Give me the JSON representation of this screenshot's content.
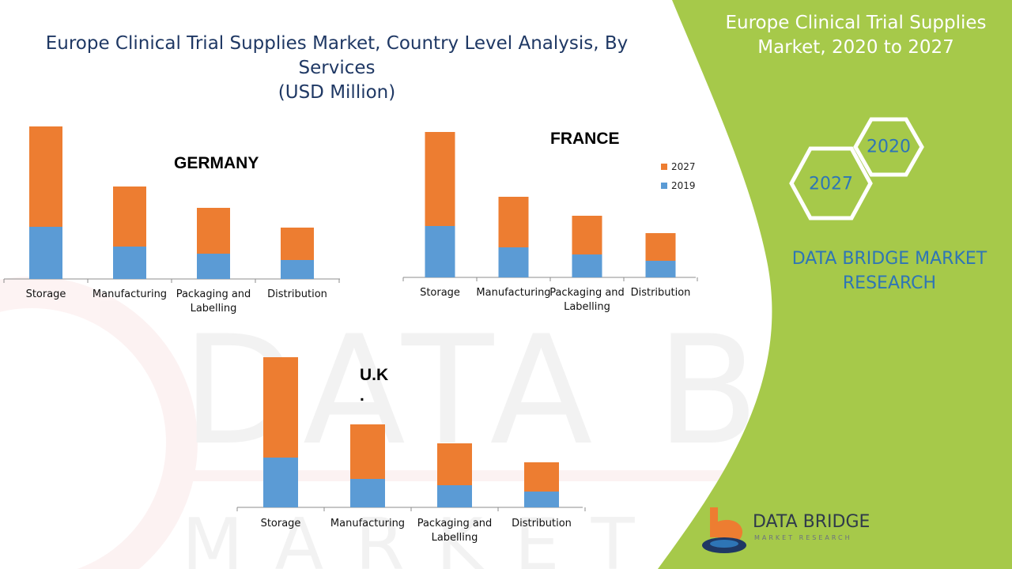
{
  "title_lines": [
    "Europe Clinical Trial Supplies Market, Country Level Analysis, By Services",
    "(USD Million)"
  ],
  "side_title_lines": [
    "Europe Clinical Trial Supplies",
    "Market,  2020 to 2027"
  ],
  "hex_labels": {
    "front": "2027",
    "back": "2020"
  },
  "brand_lines": [
    "DATA BRIDGE MARKET",
    "RESEARCH"
  ],
  "logo": {
    "name": "DATA BRIDGE",
    "sub": "MARKET RESEARCH"
  },
  "colors": {
    "2019": "#5b9bd5",
    "2027": "#ed7d31",
    "green": "#a6c94a",
    "title": "#1f3864",
    "brand": "#2e75b6"
  },
  "chart_data": [
    {
      "type": "bar",
      "stacked": true,
      "title": "GERMANY",
      "categories": [
        "Storage",
        "Manufacturing",
        "Packaging and Labelling",
        "Distribution"
      ],
      "series": [
        {
          "name": "2019",
          "values": [
            66,
            41,
            32,
            24
          ]
        },
        {
          "name": "2027",
          "values": [
            127,
            76,
            58,
            41
          ]
        }
      ],
      "ylim": [
        0,
        200
      ],
      "grid": false
    },
    {
      "type": "bar",
      "stacked": true,
      "title": "FRANCE",
      "categories": [
        "Storage",
        "Manufacturing",
        "Packaging and Labelling",
        "Distribution"
      ],
      "series": [
        {
          "name": "2019",
          "values": [
            65,
            38,
            29,
            21
          ]
        },
        {
          "name": "2027",
          "values": [
            119,
            64,
            49,
            35
          ]
        }
      ],
      "legend": {
        "position": "top-right",
        "entries": [
          "2027",
          "2019"
        ]
      },
      "ylim": [
        0,
        200
      ],
      "grid": false
    },
    {
      "type": "bar",
      "stacked": true,
      "title": "U.K\n.",
      "categories": [
        "Storage",
        "Manufacturing",
        "Packaging and Labelling",
        "Distribution"
      ],
      "series": [
        {
          "name": "2019",
          "values": [
            63,
            36,
            28,
            20
          ]
        },
        {
          "name": "2027",
          "values": [
            127,
            69,
            53,
            37
          ]
        }
      ],
      "ylim": [
        0,
        200
      ],
      "grid": false
    }
  ]
}
